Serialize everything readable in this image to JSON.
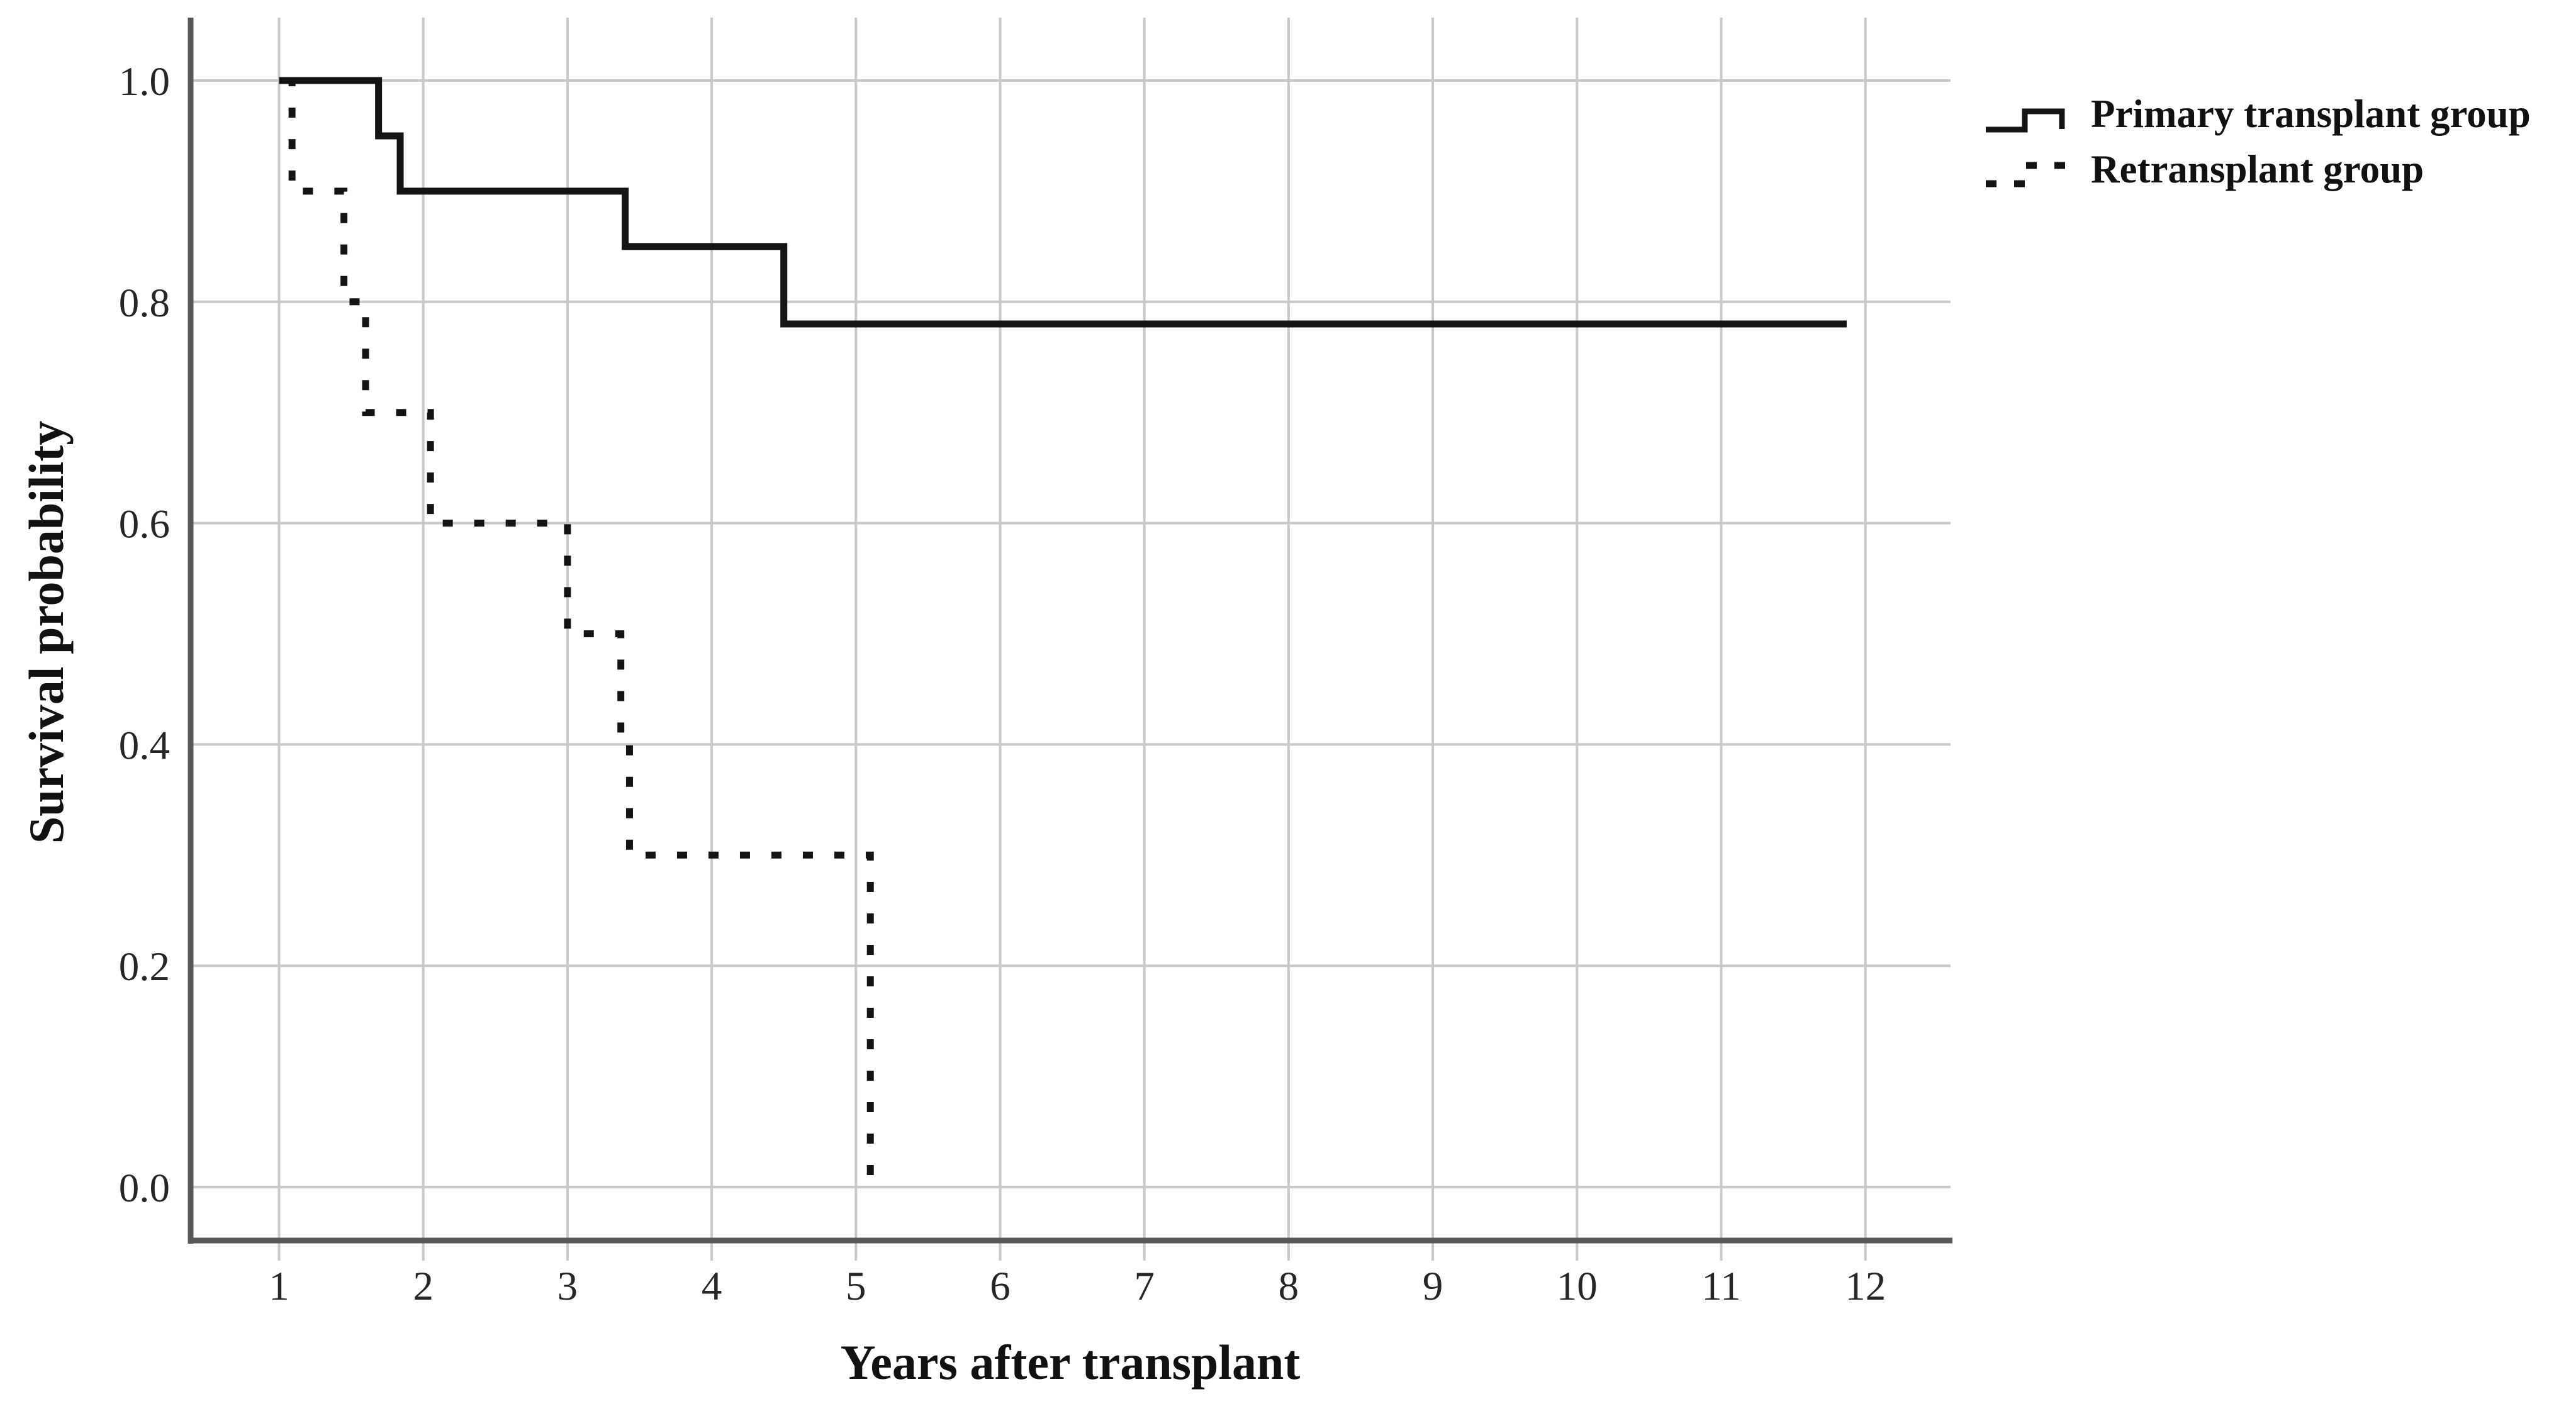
{
  "figure": {
    "background": "#ffffff"
  },
  "axes": {
    "x_title": "Years after transplant",
    "y_title": "Survival probability"
  },
  "legend": {
    "items": [
      {
        "label": "Primary transplant group",
        "style": "solid"
      },
      {
        "label": "Retransplant group",
        "style": "dotted"
      }
    ]
  },
  "colors": {
    "grid": "#c9c9c9",
    "axis": "#585858",
    "tick_text": "#262626",
    "curve": "#141414"
  },
  "chart_data": {
    "type": "line",
    "subtype": "kaplan-meier-step",
    "title": "",
    "xlabel": "Years after transplant",
    "ylabel": "Survival probability",
    "xlim": [
      0.4,
      12.6
    ],
    "ylim": [
      0.0,
      1.0
    ],
    "x_ticks": [
      1,
      2,
      3,
      4,
      5,
      6,
      7,
      8,
      9,
      10,
      11,
      12
    ],
    "y_ticks": [
      0.0,
      0.2,
      0.4,
      0.6,
      0.8,
      1.0
    ],
    "grid": true,
    "legend_position": "top-right-outside",
    "series": [
      {
        "name": "Primary transplant group",
        "line": "solid",
        "color": "#141414",
        "start": [
          1.0,
          1.0
        ],
        "steps": [
          [
            1.69,
            0.95
          ],
          [
            1.84,
            0.9
          ],
          [
            3.4,
            0.85
          ],
          [
            4.5,
            0.78
          ]
        ],
        "end_time": 11.87
      },
      {
        "name": "Retransplant group",
        "line": "dotted",
        "color": "#141414",
        "start": [
          1.06,
          1.0
        ],
        "steps": [
          [
            1.09,
            0.9
          ],
          [
            1.45,
            0.8
          ],
          [
            1.6,
            0.7
          ],
          [
            2.05,
            0.6
          ],
          [
            3.0,
            0.5
          ],
          [
            3.37,
            0.4
          ],
          [
            3.43,
            0.3
          ],
          [
            5.1,
            0.0
          ]
        ],
        "end_time": 5.1
      }
    ]
  }
}
